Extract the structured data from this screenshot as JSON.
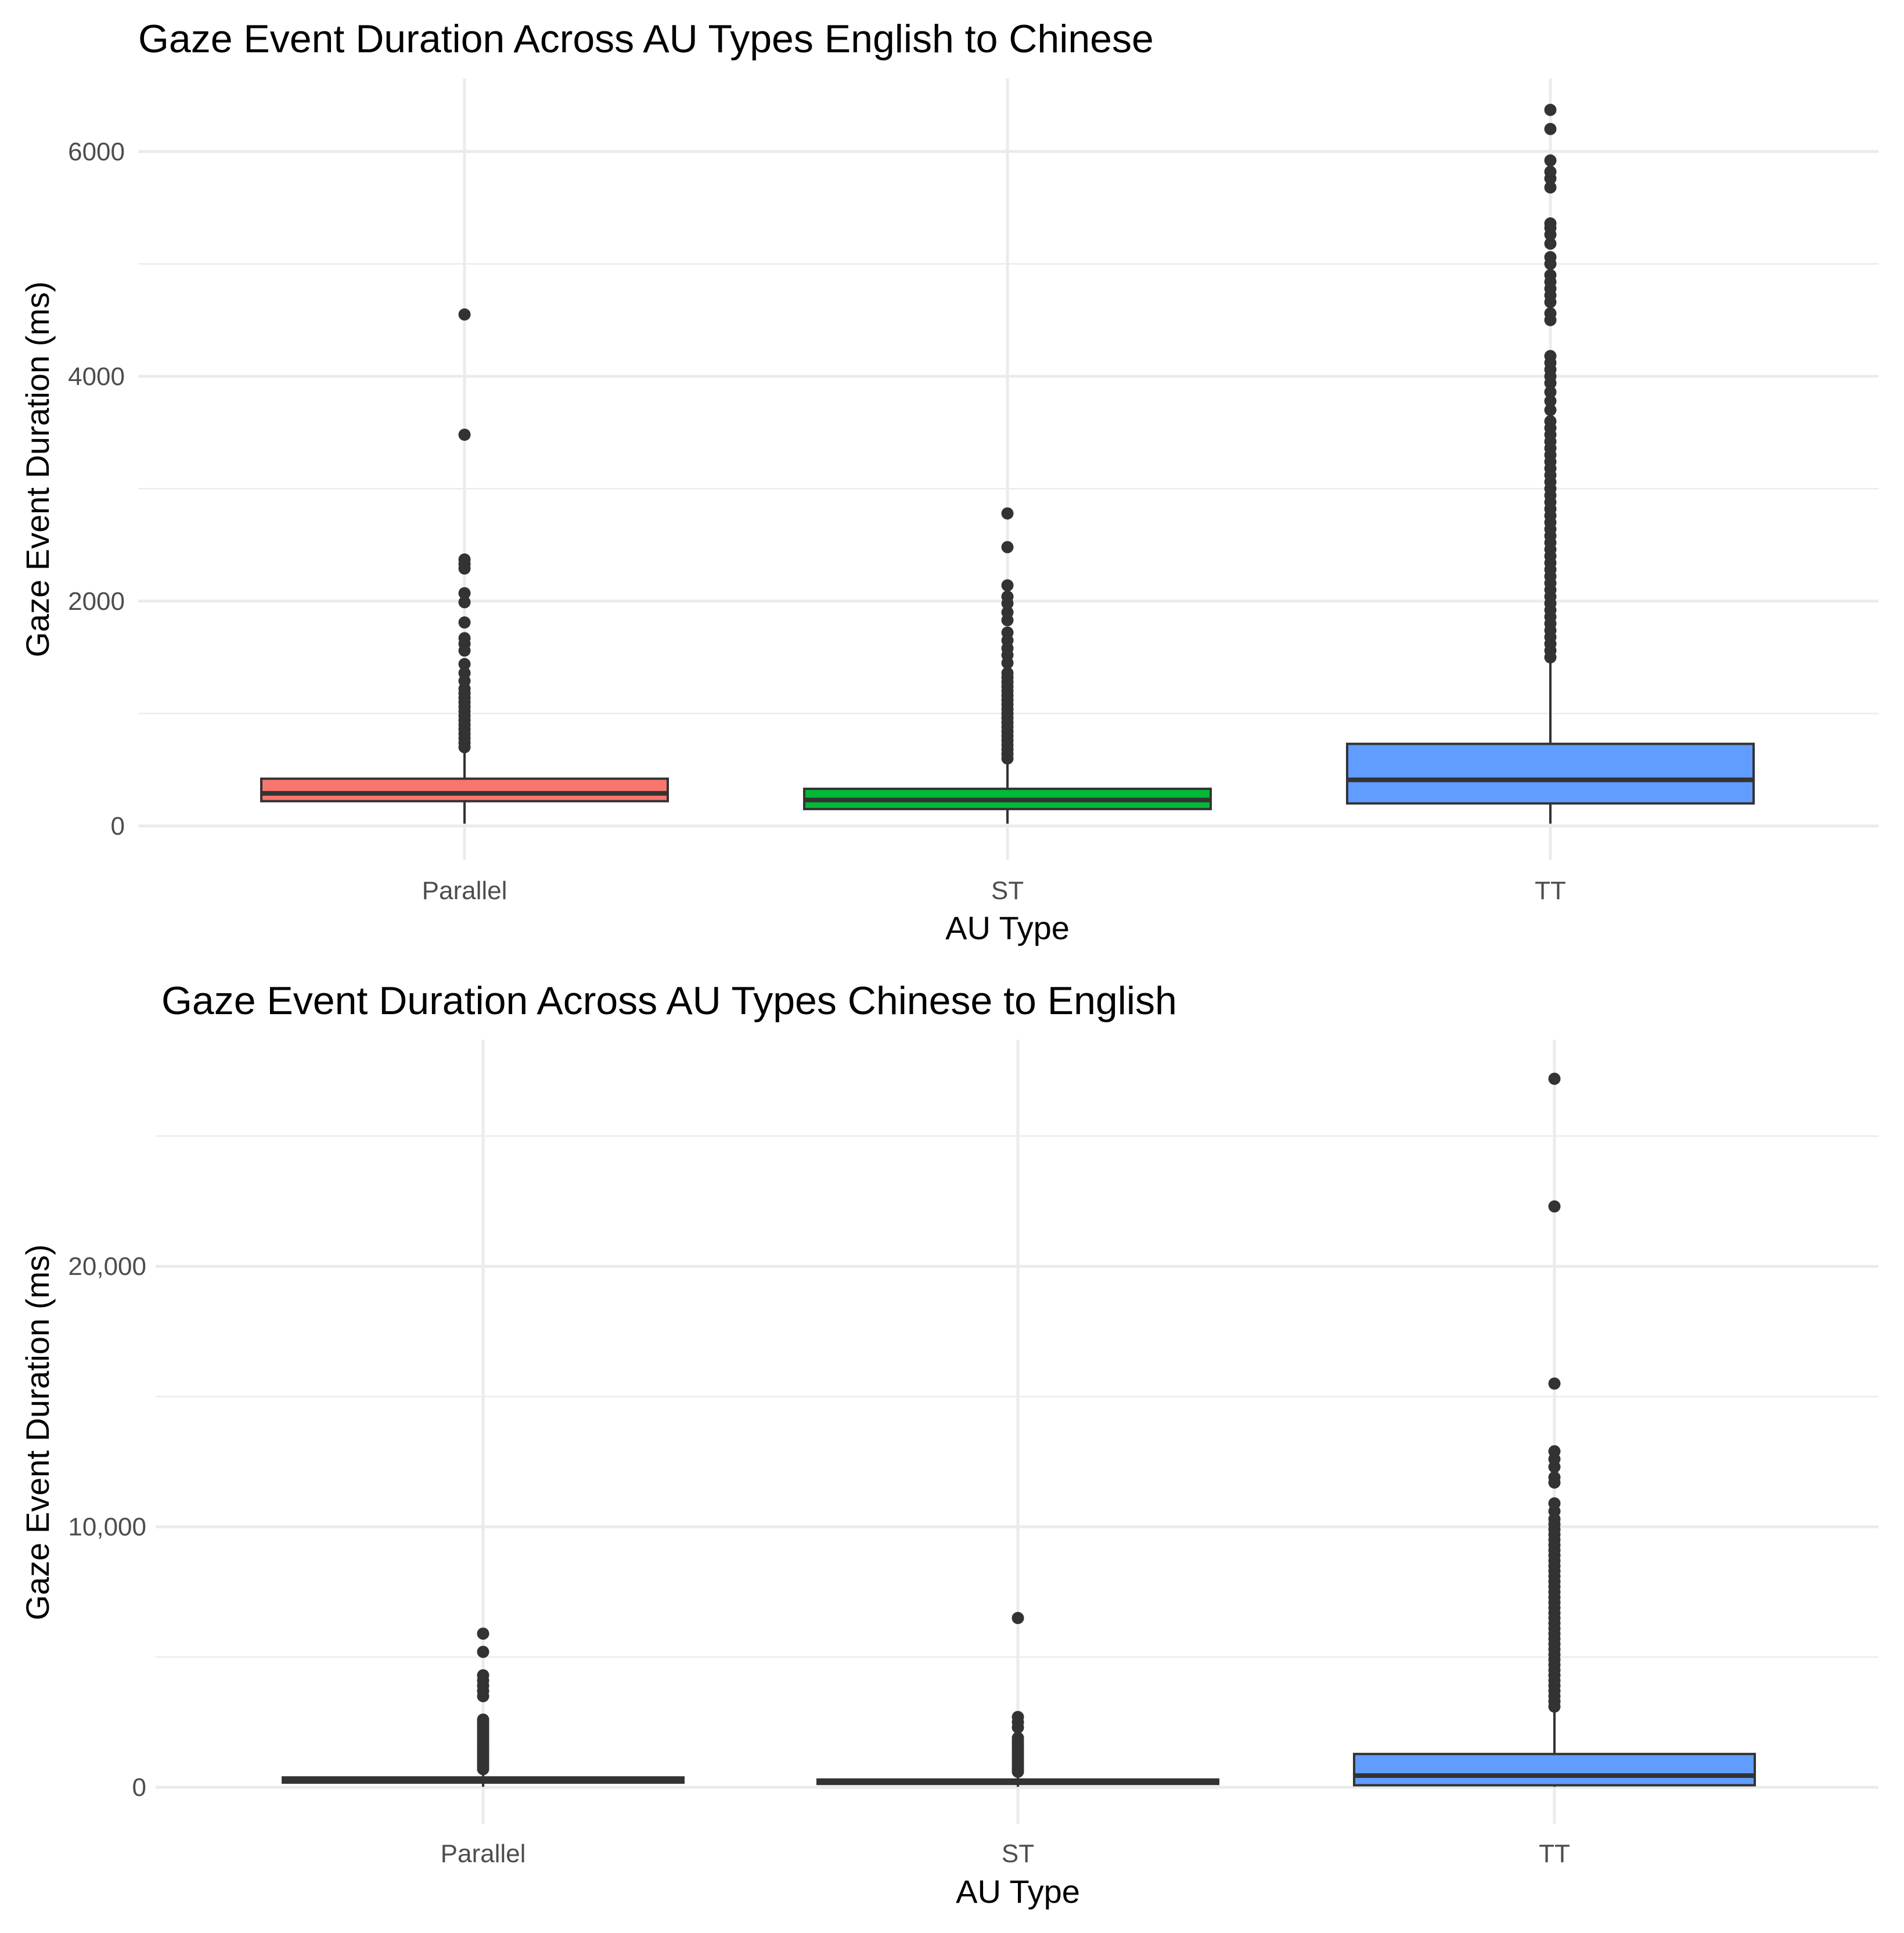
{
  "chart_data": [
    {
      "type": "box",
      "title": "Gaze Event Duration Across AU Types English to Chinese",
      "xlabel": "AU Type",
      "ylabel": "Gaze Event Duration (ms)",
      "ylim": [
        -300,
        6650
      ],
      "yticks": [
        0,
        2000,
        4000,
        6000
      ],
      "ytick_labels": [
        "0",
        "2000",
        "4000",
        "6000"
      ],
      "grid": true,
      "categories": [
        "Parallel",
        "ST",
        "TT"
      ],
      "fills": [
        "#F8766D",
        "#00BA38",
        "#619CFF"
      ],
      "boxes": [
        {
          "name": "Parallel",
          "whisker_low": 20,
          "q1": 220,
          "median": 290,
          "q3": 420,
          "whisker_high": 680,
          "outliers": [
            700,
            740,
            780,
            820,
            860,
            900,
            940,
            980,
            1020,
            1060,
            1100,
            1140,
            1180,
            1220,
            1290,
            1360,
            1440,
            1560,
            1620,
            1670,
            1810,
            1990,
            2070,
            2290,
            2330,
            2370,
            3480,
            4550
          ]
        },
        {
          "name": "ST",
          "whisker_low": 20,
          "q1": 150,
          "median": 230,
          "q3": 330,
          "whisker_high": 580,
          "outliers": [
            600,
            640,
            680,
            720,
            760,
            800,
            840,
            880,
            920,
            960,
            1000,
            1040,
            1080,
            1120,
            1160,
            1200,
            1240,
            1280,
            1320,
            1360,
            1450,
            1520,
            1580,
            1650,
            1720,
            1830,
            1900,
            1980,
            2040,
            2140,
            2480,
            2780
          ]
        },
        {
          "name": "TT",
          "whisker_low": 20,
          "q1": 200,
          "median": 410,
          "q3": 730,
          "whisker_high": 1480,
          "outliers": [
            1500,
            1560,
            1620,
            1680,
            1740,
            1800,
            1860,
            1920,
            1980,
            2040,
            2100,
            2160,
            2220,
            2280,
            2340,
            2400,
            2460,
            2520,
            2580,
            2640,
            2700,
            2760,
            2820,
            2880,
            2940,
            3000,
            3060,
            3120,
            3180,
            3240,
            3300,
            3360,
            3420,
            3480,
            3540,
            3600,
            3700,
            3780,
            3860,
            3940,
            4000,
            4060,
            4120,
            4180,
            4500,
            4560,
            4660,
            4720,
            4780,
            4840,
            4900,
            5000,
            5060,
            5180,
            5260,
            5320,
            5360,
            5680,
            5760,
            5820,
            5920,
            6200,
            6370
          ]
        }
      ]
    },
    {
      "type": "box",
      "title": "Gaze Event Duration Across AU Types Chinese to English",
      "xlabel": "AU Type",
      "ylabel": "Gaze Event Duration (ms)",
      "ylim": [
        -1400,
        28700
      ],
      "yticks": [
        0,
        10000,
        20000
      ],
      "ytick_labels": [
        "0",
        "10,000",
        "20,000"
      ],
      "grid": true,
      "categories": [
        "Parallel",
        "ST",
        "TT"
      ],
      "fills": [
        "#F8766D",
        "#00BA38",
        "#619CFF"
      ],
      "boxes": [
        {
          "name": "Parallel",
          "whisker_low": 20,
          "q1": 180,
          "median": 260,
          "q3": 380,
          "whisker_high": 650,
          "outliers": [
            700,
            800,
            900,
            1000,
            1100,
            1200,
            1300,
            1400,
            1500,
            1600,
            1700,
            1800,
            1900,
            2000,
            2100,
            2200,
            2300,
            2400,
            2500,
            2600,
            3500,
            3700,
            3900,
            4100,
            4300,
            5200,
            5900
          ]
        },
        {
          "name": "ST",
          "whisker_low": 20,
          "q1": 130,
          "median": 200,
          "q3": 300,
          "whisker_high": 550,
          "outliers": [
            600,
            700,
            800,
            900,
            1000,
            1100,
            1200,
            1300,
            1400,
            1500,
            1600,
            1700,
            1800,
            1900,
            2300,
            2500,
            2700,
            6500
          ]
        },
        {
          "name": "TT",
          "whisker_low": 20,
          "q1": 80,
          "median": 450,
          "q3": 1280,
          "whisker_high": 3050,
          "outliers": [
            3100,
            3300,
            3500,
            3700,
            3900,
            4100,
            4300,
            4500,
            4700,
            4900,
            5100,
            5300,
            5500,
            5700,
            5900,
            6100,
            6300,
            6500,
            6700,
            6900,
            7100,
            7300,
            7500,
            7700,
            7900,
            8100,
            8300,
            8500,
            8700,
            8900,
            9100,
            9300,
            9500,
            9700,
            9900,
            10100,
            10300,
            10600,
            10900,
            11700,
            11900,
            12300,
            12600,
            12900,
            15500,
            22300,
            27200
          ]
        }
      ]
    }
  ]
}
